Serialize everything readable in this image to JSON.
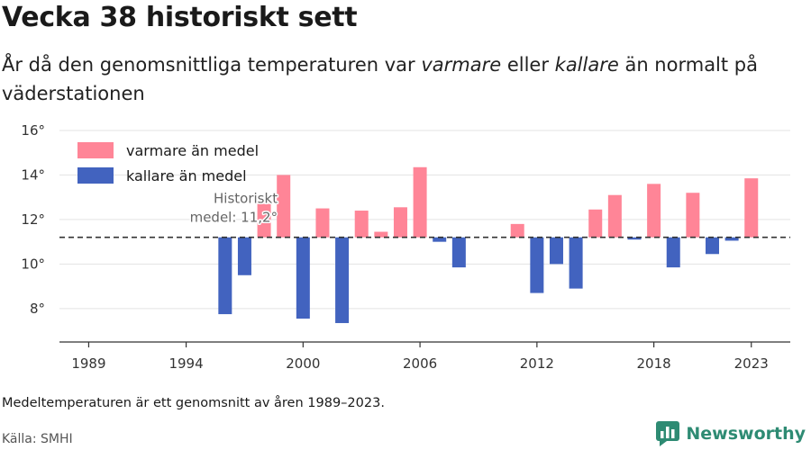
{
  "header": {
    "title": "Vecka 38 historiskt sett",
    "subtitle_parts": [
      "År då den genomsnittliga temperaturen var ",
      "varmare",
      " eller ",
      "kallare",
      " än normalt på väderstationen"
    ]
  },
  "footer": {
    "note": "Medeltemperaturen är ett genomsnitt av åren 1989–2023.",
    "source": "Källa: SMHI",
    "brand": "Newsworthy"
  },
  "colors": {
    "warm": "#ff8597",
    "cold": "#4263bf",
    "brand": "#2e8b73"
  },
  "chart_data": {
    "type": "bar",
    "baseline": 11.2,
    "baseline_label": [
      "Historiskt",
      "medel: 11,2°"
    ],
    "ylim": [
      6.5,
      16.2
    ],
    "yticks": [
      8,
      10,
      12,
      14,
      16
    ],
    "ytick_labels": [
      "8°",
      "10°",
      "12°",
      "14°",
      "16°"
    ],
    "xlim": [
      1987.5,
      2025
    ],
    "xticks": [
      1989,
      1994,
      2000,
      2006,
      2012,
      2018,
      2023
    ],
    "xtick_labels": [
      "1989",
      "1994",
      "2000",
      "2006",
      "2012",
      "2018",
      "2023"
    ],
    "grid": true,
    "legend_position": "top-left",
    "series": [
      {
        "name": "varmare än medel",
        "color_key": "warm"
      },
      {
        "name": "kallare än medel",
        "color_key": "cold"
      }
    ],
    "x": [
      1996,
      1997,
      1998,
      1999,
      2000,
      2001,
      2002,
      2003,
      2004,
      2005,
      2006,
      2007,
      2008,
      2011,
      2012,
      2013,
      2014,
      2015,
      2016,
      2017,
      2018,
      2019,
      2020,
      2021,
      2022,
      2023
    ],
    "values": [
      7.75,
      9.5,
      12.7,
      14.0,
      7.55,
      12.5,
      7.35,
      12.4,
      11.45,
      12.55,
      14.35,
      11.0,
      9.85,
      11.8,
      8.7,
      10.0,
      8.9,
      12.45,
      13.1,
      11.1,
      13.6,
      9.85,
      13.2,
      10.45,
      11.05,
      13.85
    ]
  }
}
